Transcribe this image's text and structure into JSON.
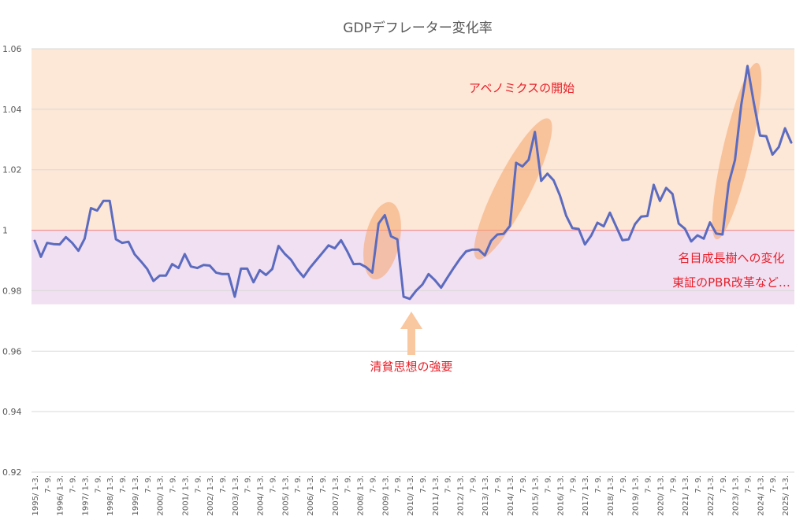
{
  "chart_data": {
    "type": "line",
    "title": "GDPデフレーター変化率",
    "xlabel": "",
    "ylabel": "",
    "ylim": [
      0.92,
      1.06
    ],
    "yticks": [
      "0.92",
      "0.94",
      "0.96",
      "0.98",
      "1",
      "1.02",
      "1.04",
      "1.06"
    ],
    "grid": true,
    "legend": "none",
    "x_tick_labels": [
      "1995/ 1-3.",
      "7- 9.",
      "1996/ 1-3.",
      "7- 9.",
      "1997/ 1-3.",
      "7- 9.",
      "1998/ 1-3.",
      "7- 9.",
      "1999/ 1-3.",
      "7- 9.",
      "2000/ 1-3.",
      "7- 9.",
      "2001/ 1-3.",
      "7- 9.",
      "2002/ 1-3.",
      "7- 9.",
      "2003/ 1-3.",
      "7- 9.",
      "2004/ 1-3.",
      "7- 9.",
      "2005/ 1-3.",
      "7- 9.",
      "2006/ 1-3.",
      "7- 9.",
      "2007/ 1-3.",
      "7- 9.",
      "2008/ 1-3.",
      "7- 9.",
      "2009/ 1-3.",
      "7- 9.",
      "2010/ 1-3.",
      "7- 9.",
      "2011/ 1-3.",
      "7- 9.",
      "2012/ 1-3.",
      "7- 9.",
      "2013/ 1-3.",
      "7- 9.",
      "2014/ 1-3.",
      "7- 9.",
      "2015/ 1-3.",
      "7- 9.",
      "2016/ 1-3.",
      "7- 9.",
      "2017/ 1-3.",
      "7- 9.",
      "2018/ 1-3.",
      "7- 9.",
      "2019/ 1-3.",
      "7- 9.",
      "2020/ 1-3.",
      "7- 9.",
      "2021/ 1-3.",
      "7- 9.",
      "2022/ 1-3.",
      "7- 9.",
      "2023/ 1-3.",
      "7- 9.",
      "2024/ 1-3.",
      "7- 9.",
      "2025/ 1-3."
    ],
    "series": [
      {
        "values": [
          0.9965,
          0.9912,
          0.9958,
          0.9954,
          0.9953,
          0.9977,
          0.9958,
          0.9932,
          0.9972,
          1.0073,
          1.0065,
          1.0097,
          1.0097,
          0.997,
          0.9958,
          0.9962,
          0.992,
          0.9897,
          0.9872,
          0.9832,
          0.985,
          0.985,
          0.9888,
          0.9875,
          0.9921,
          0.988,
          0.9875,
          0.9885,
          0.9883,
          0.986,
          0.9855,
          0.9855,
          0.978,
          0.9873,
          0.9873,
          0.9828,
          0.9868,
          0.9852,
          0.9872,
          0.9948,
          0.9922,
          0.9902,
          0.987,
          0.9845,
          0.9875,
          0.99,
          0.9925,
          0.995,
          0.994,
          0.9967,
          0.993,
          0.9888,
          0.9889,
          0.9878,
          0.986,
          1.0022,
          1.005,
          0.998,
          0.997,
          0.978,
          0.9773,
          0.98,
          0.982,
          0.9855,
          0.9835,
          0.981,
          0.9843,
          0.9875,
          0.9905,
          0.993,
          0.9936,
          0.9936,
          0.9917,
          0.9965,
          0.9986,
          0.9988,
          1.0014,
          1.0223,
          1.0211,
          1.0233,
          1.0325,
          1.0163,
          1.0187,
          1.0165,
          1.0115,
          1.0048,
          1.0007,
          1.0004,
          0.9953,
          0.9982,
          1.0025,
          1.0013,
          1.0058,
          1.0012,
          0.9967,
          0.997,
          1.002,
          1.0045,
          1.0047,
          1.015,
          1.0097,
          1.014,
          1.012,
          1.0022,
          1.0005,
          0.9963,
          0.9983,
          0.9972,
          1.0026,
          0.9989,
          0.9986,
          1.0155,
          1.0232,
          1.0415,
          1.0543,
          1.0423,
          1.0313,
          1.0311,
          1.025,
          1.0275,
          1.0337,
          1.029
        ]
      }
    ],
    "annotations": {
      "abenomics": "アベノミクスの開始",
      "deflation_mindset": "清貧思想の強要",
      "nominal_growth": "名目成長樹への変化",
      "tse_pbr": "東証のPBR改革など…"
    },
    "colors": {
      "line": "#5b6bbf",
      "upper_band": "#fde7d6",
      "lower_band": "#f1dff2",
      "annotation_text": "#e8202a",
      "highlight": "#f4a46b",
      "arrow": "#f9c7a0",
      "title_text": "#595959",
      "axis_text": "#595959",
      "gridline": "#d9d9d9",
      "reference_line": "#f08080"
    }
  }
}
